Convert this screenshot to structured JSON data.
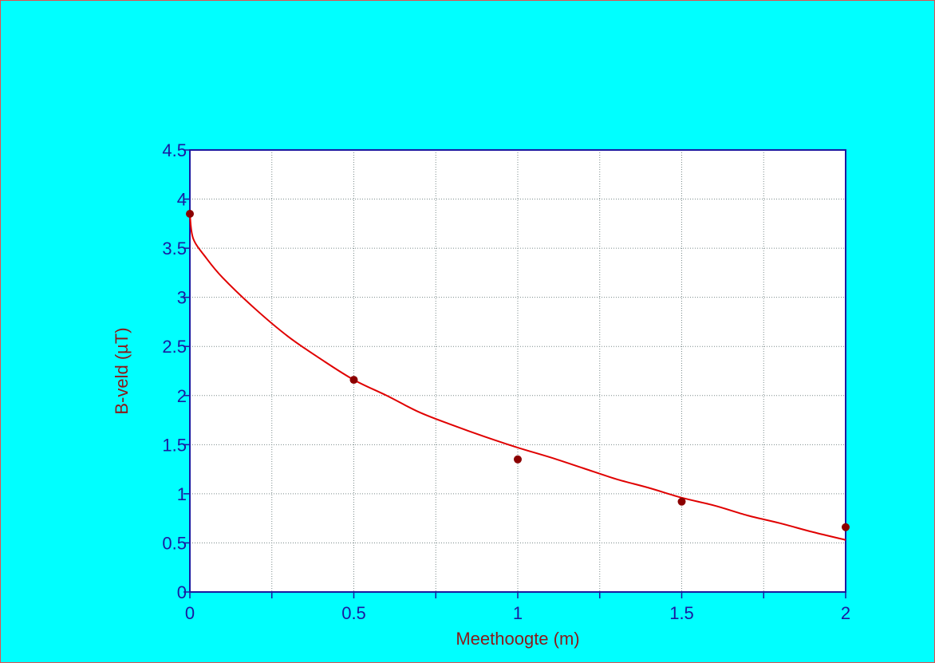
{
  "chart_data": {
    "type": "scatter",
    "title": "",
    "xlabel": "Meethoogte (m)",
    "ylabel": "B-veld (µT)",
    "xlim": [
      0,
      2
    ],
    "ylim": [
      0,
      4.5
    ],
    "x_ticks": [
      "0",
      "0.5",
      "1",
      "1.5",
      "2"
    ],
    "y_ticks": [
      "0",
      "0.5",
      "1",
      "1.5",
      "2",
      "2.5",
      "3",
      "3.5",
      "4",
      "4.5"
    ],
    "grid": true,
    "series": [
      {
        "kind": "points",
        "x": [
          0,
          0.5,
          1,
          1.5,
          2
        ],
        "y": [
          3.85,
          2.16,
          1.35,
          0.92,
          0.66
        ],
        "color": "#8B0000"
      },
      {
        "kind": "fit-line",
        "x": [
          0,
          0.01,
          0.05,
          0.1,
          0.2,
          0.3,
          0.4,
          0.5,
          0.6,
          0.7,
          0.8,
          0.9,
          1.0,
          1.1,
          1.2,
          1.3,
          1.4,
          1.5,
          1.6,
          1.7,
          1.8,
          1.9,
          2.0
        ],
        "y": [
          3.85,
          3.6,
          3.4,
          3.2,
          2.88,
          2.6,
          2.37,
          2.16,
          2.0,
          1.83,
          1.7,
          1.58,
          1.47,
          1.37,
          1.26,
          1.15,
          1.06,
          0.96,
          0.88,
          0.78,
          0.7,
          0.61,
          0.53
        ],
        "color": "#E00000"
      }
    ],
    "colors": {
      "background": "#00FFFF",
      "plot_area": "#FFFFFF",
      "axis": "#1a1aa0",
      "grid": "#7a8a8a",
      "label": "#8B1A1A"
    }
  }
}
